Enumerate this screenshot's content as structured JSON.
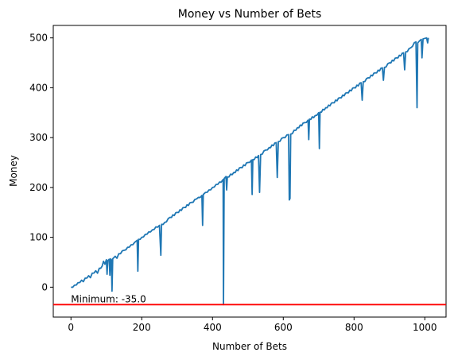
{
  "chart_data": {
    "type": "line",
    "title": "Money vs Number of Bets",
    "xlabel": "Number of Bets",
    "ylabel": "Money",
    "xlim": [
      -50,
      1060
    ],
    "ylim": [
      -60,
      525
    ],
    "xticks": [
      0,
      200,
      400,
      600,
      800,
      1000
    ],
    "yticks": [
      0,
      100,
      200,
      300,
      400,
      500
    ],
    "grid": false,
    "series": [
      {
        "color": "#1f77b4",
        "trend": [
          [
            0,
            0
          ],
          [
            100,
            50
          ],
          [
            200,
            100
          ],
          [
            300,
            150
          ],
          [
            400,
            200
          ],
          [
            500,
            250
          ],
          [
            600,
            300
          ],
          [
            700,
            350
          ],
          [
            800,
            400
          ],
          [
            900,
            450
          ],
          [
            1010,
            500
          ]
        ],
        "points": [
          [
            0,
            0
          ],
          [
            10,
            4
          ],
          [
            20,
            9
          ],
          [
            30,
            14
          ],
          [
            35,
            11
          ],
          [
            40,
            18
          ],
          [
            50,
            23
          ],
          [
            55,
            19
          ],
          [
            60,
            28
          ],
          [
            70,
            33
          ],
          [
            75,
            28
          ],
          [
            80,
            38
          ],
          [
            88,
            42
          ],
          [
            92,
            52
          ],
          [
            96,
            46
          ],
          [
            100,
            55
          ],
          [
            102,
            26
          ],
          [
            104,
            53
          ],
          [
            108,
            56
          ],
          [
            110,
            24
          ],
          [
            112,
            57
          ],
          [
            114,
            55
          ],
          [
            116,
            -8
          ],
          [
            118,
            57
          ],
          [
            125,
            62
          ],
          [
            130,
            58
          ],
          [
            135,
            67
          ],
          [
            150,
            74
          ],
          [
            160,
            80
          ],
          [
            170,
            85
          ],
          [
            180,
            90
          ],
          [
            187,
            94
          ],
          [
            189,
            32
          ],
          [
            191,
            96
          ],
          [
            200,
            100
          ],
          [
            210,
            106
          ],
          [
            220,
            111
          ],
          [
            230,
            115
          ],
          [
            240,
            121
          ],
          [
            250,
            124
          ],
          [
            254,
            64
          ],
          [
            256,
            126
          ],
          [
            265,
            130
          ],
          [
            280,
            140
          ],
          [
            300,
            150
          ],
          [
            320,
            160
          ],
          [
            340,
            170
          ],
          [
            355,
            177
          ],
          [
            360,
            180
          ],
          [
            370,
            184
          ],
          [
            372,
            124
          ],
          [
            374,
            186
          ],
          [
            380,
            190
          ],
          [
            390,
            195
          ],
          [
            400,
            200
          ],
          [
            410,
            206
          ],
          [
            420,
            211
          ],
          [
            428,
            214
          ],
          [
            430,
            216
          ],
          [
            431,
            -35
          ],
          [
            433,
            218
          ],
          [
            438,
            222
          ],
          [
            440,
            195
          ],
          [
            442,
            221
          ],
          [
            460,
            230
          ],
          [
            480,
            240
          ],
          [
            500,
            250
          ],
          [
            510,
            255
          ],
          [
            512,
            186
          ],
          [
            514,
            256
          ],
          [
            530,
            264
          ],
          [
            533,
            190
          ],
          [
            536,
            266
          ],
          [
            550,
            275
          ],
          [
            560,
            280
          ],
          [
            580,
            290
          ],
          [
            583,
            220
          ],
          [
            586,
            292
          ],
          [
            600,
            300
          ],
          [
            615,
            306
          ],
          [
            617,
            175
          ],
          [
            619,
            178
          ],
          [
            621,
            307
          ],
          [
            640,
            320
          ],
          [
            660,
            330
          ],
          [
            670,
            335
          ],
          [
            672,
            296
          ],
          [
            674,
            337
          ],
          [
            690,
            344
          ],
          [
            700,
            350
          ],
          [
            702,
            278
          ],
          [
            704,
            351
          ],
          [
            720,
            360
          ],
          [
            740,
            370
          ],
          [
            760,
            380
          ],
          [
            780,
            390
          ],
          [
            800,
            400
          ],
          [
            820,
            410
          ],
          [
            823,
            375
          ],
          [
            826,
            412
          ],
          [
            840,
            420
          ],
          [
            860,
            430
          ],
          [
            880,
            440
          ],
          [
            883,
            415
          ],
          [
            886,
            441
          ],
          [
            900,
            450
          ],
          [
            920,
            460
          ],
          [
            940,
            470
          ],
          [
            943,
            436
          ],
          [
            946,
            472
          ],
          [
            960,
            480
          ],
          [
            970,
            490
          ],
          [
            975,
            492
          ],
          [
            978,
            360
          ],
          [
            980,
            490
          ],
          [
            985,
            494
          ],
          [
            990,
            497
          ],
          [
            992,
            460
          ],
          [
            995,
            498
          ],
          [
            1000,
            499
          ],
          [
            1005,
            500
          ],
          [
            1008,
            490
          ],
          [
            1010,
            500
          ]
        ]
      }
    ],
    "hline": {
      "y": -35,
      "color": "#ff0000",
      "label": "Minimum: -35.0",
      "label_x": 0
    }
  }
}
